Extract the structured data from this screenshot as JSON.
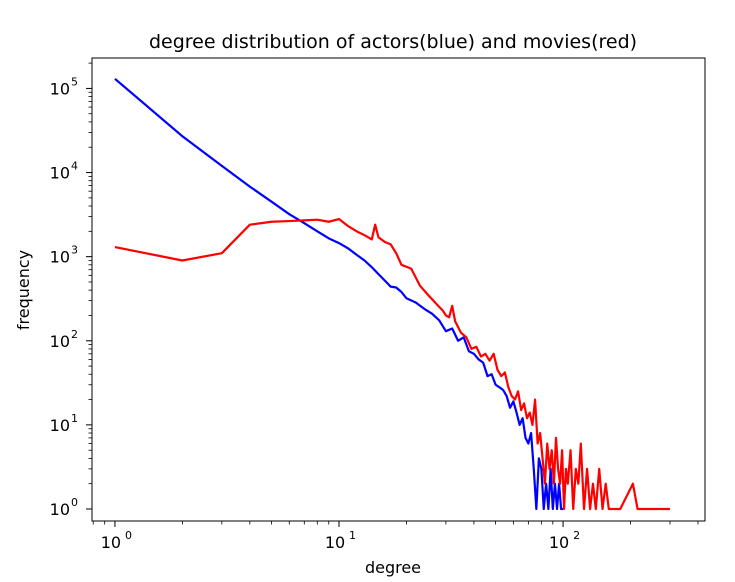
{
  "chart_data": {
    "type": "line",
    "title": "degree distribution of actors(blue) and movies(red)",
    "xlabel": "degree",
    "ylabel": "frequency",
    "xscale": "log",
    "yscale": "log",
    "xlim": [
      0.79,
      430
    ],
    "ylim": [
      0.72,
      230000
    ],
    "grid": false,
    "x_ticks": [
      {
        "base": "10",
        "exp": "0"
      },
      {
        "base": "10",
        "exp": "1"
      },
      {
        "base": "10",
        "exp": "2"
      }
    ],
    "y_ticks": [
      {
        "base": "10",
        "exp": "0"
      },
      {
        "base": "10",
        "exp": "1"
      },
      {
        "base": "10",
        "exp": "2"
      },
      {
        "base": "10",
        "exp": "3"
      },
      {
        "base": "10",
        "exp": "4"
      },
      {
        "base": "10",
        "exp": "5"
      }
    ],
    "series": [
      {
        "color": "#0000ff",
        "points": [
          [
            1,
            130000
          ],
          [
            2,
            27000
          ],
          [
            3,
            12000
          ],
          [
            4,
            6800
          ],
          [
            5,
            4500
          ],
          [
            6,
            3200
          ],
          [
            7,
            2500
          ],
          [
            8,
            2000
          ],
          [
            9,
            1650
          ],
          [
            10,
            1450
          ],
          [
            11,
            1250
          ],
          [
            12,
            1050
          ],
          [
            13,
            900
          ],
          [
            14,
            750
          ],
          [
            15,
            620
          ],
          [
            16,
            520
          ],
          [
            17,
            440
          ],
          [
            18,
            430
          ],
          [
            19,
            380
          ],
          [
            20,
            320
          ],
          [
            22,
            285
          ],
          [
            24,
            240
          ],
          [
            26,
            210
          ],
          [
            28,
            175
          ],
          [
            30,
            130
          ],
          [
            32,
            140
          ],
          [
            34,
            100
          ],
          [
            36,
            110
          ],
          [
            38,
            75
          ],
          [
            40,
            70
          ],
          [
            42,
            60
          ],
          [
            44,
            55
          ],
          [
            46,
            38
          ],
          [
            48,
            40
          ],
          [
            50,
            30
          ],
          [
            52,
            28
          ],
          [
            54,
            26
          ],
          [
            56,
            22
          ],
          [
            58,
            16
          ],
          [
            60,
            19
          ],
          [
            62,
            14
          ],
          [
            64,
            10
          ],
          [
            66,
            12
          ],
          [
            68,
            7
          ],
          [
            70,
            6
          ],
          [
            72,
            8
          ],
          [
            74,
            3
          ],
          [
            76,
            1
          ],
          [
            78,
            4
          ],
          [
            80,
            3
          ],
          [
            82,
            1
          ],
          [
            84,
            2
          ],
          [
            86,
            1
          ],
          [
            88,
            3
          ],
          [
            90,
            1
          ],
          [
            92,
            2
          ],
          [
            94,
            1
          ],
          [
            96,
            2
          ],
          [
            98,
            1
          ],
          [
            100,
            1
          ]
        ]
      },
      {
        "color": "#ff0000",
        "points": [
          [
            1,
            1300
          ],
          [
            2,
            900
          ],
          [
            3,
            1100
          ],
          [
            4,
            2400
          ],
          [
            5,
            2600
          ],
          [
            6,
            2650
          ],
          [
            7,
            2700
          ],
          [
            8,
            2750
          ],
          [
            9,
            2600
          ],
          [
            10,
            2800
          ],
          [
            11,
            2300
          ],
          [
            12,
            2000
          ],
          [
            13,
            1800
          ],
          [
            14,
            1600
          ],
          [
            14.5,
            2400
          ],
          [
            15,
            1700
          ],
          [
            16,
            1500
          ],
          [
            17,
            1400
          ],
          [
            18,
            1100
          ],
          [
            19,
            800
          ],
          [
            21,
            720
          ],
          [
            23,
            450
          ],
          [
            25,
            350
          ],
          [
            27,
            280
          ],
          [
            29,
            230
          ],
          [
            30,
            200
          ],
          [
            31,
            190
          ],
          [
            32,
            260
          ],
          [
            33,
            170
          ],
          [
            35,
            125
          ],
          [
            37,
            110
          ],
          [
            39,
            80
          ],
          [
            41,
            85
          ],
          [
            43,
            65
          ],
          [
            45,
            70
          ],
          [
            47,
            58
          ],
          [
            49,
            70
          ],
          [
            51,
            45
          ],
          [
            53,
            38
          ],
          [
            55,
            42
          ],
          [
            57,
            28
          ],
          [
            59,
            22
          ],
          [
            61,
            20
          ],
          [
            63,
            25
          ],
          [
            65,
            15
          ],
          [
            67,
            18
          ],
          [
            69,
            12
          ],
          [
            71,
            14
          ],
          [
            73,
            10
          ],
          [
            75,
            20
          ],
          [
            77,
            6
          ],
          [
            79,
            8
          ],
          [
            81,
            4
          ],
          [
            83,
            2
          ],
          [
            85,
            6
          ],
          [
            87,
            3
          ],
          [
            89,
            5
          ],
          [
            91,
            2
          ],
          [
            93,
            7
          ],
          [
            95,
            3
          ],
          [
            97,
            2
          ],
          [
            99,
            5
          ],
          [
            101,
            1
          ],
          [
            103,
            3
          ],
          [
            105,
            2
          ],
          [
            108,
            5
          ],
          [
            111,
            1
          ],
          [
            114,
            3
          ],
          [
            117,
            2
          ],
          [
            120,
            6
          ],
          [
            124,
            1
          ],
          [
            128,
            3
          ],
          [
            132,
            1
          ],
          [
            136,
            2
          ],
          [
            140,
            1
          ],
          [
            145,
            3
          ],
          [
            150,
            1
          ],
          [
            155,
            2
          ],
          [
            160,
            1
          ],
          [
            170,
            1
          ],
          [
            180,
            1
          ],
          [
            205,
            2
          ],
          [
            215,
            1
          ],
          [
            260,
            1
          ],
          [
            300,
            1
          ]
        ]
      }
    ]
  }
}
